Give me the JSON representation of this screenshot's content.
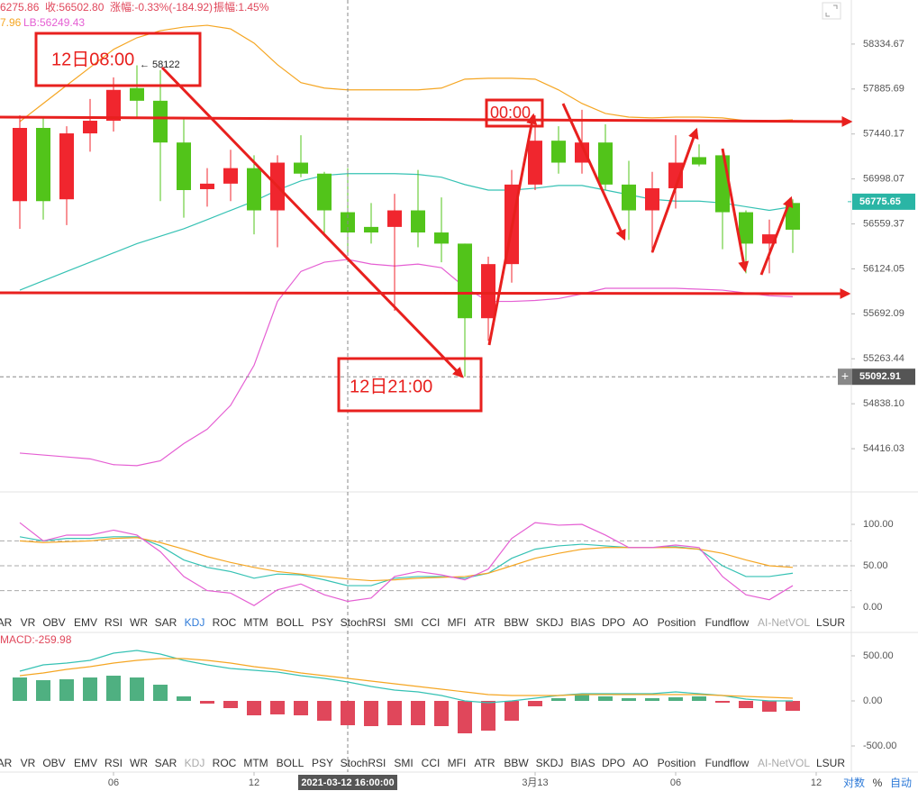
{
  "header": {
    "open_fragment": "6275.86",
    "close": "收:56502.80",
    "change": "涨幅:-0.33%(-184.92)",
    "amplitude": "振幅:1.45%",
    "ub_fragment": "7.96",
    "lb": "LB:56249.43"
  },
  "annotations": [
    {
      "text": "12日08:00",
      "note": "← 58122"
    },
    {
      "text": "00:00"
    },
    {
      "text": "12日21:00"
    }
  ],
  "indicator_tabs": [
    "AR",
    "VR",
    "OBV",
    "EMV",
    "RSI",
    "WR",
    "SAR",
    "KDJ",
    "ROC",
    "MTM",
    "BOLL",
    "PSY",
    "StochRSI",
    "SMI",
    "CCI",
    "MFI",
    "ATR",
    "BBW",
    "SKDJ",
    "BIAS",
    "DPO",
    "AO",
    "Position",
    "Fundflow",
    "AI-NetVOL",
    "LSUR"
  ],
  "scale_buttons": [
    "对数",
    "%",
    "自动"
  ],
  "chart_data": [
    {
      "type": "candlestick",
      "log": true,
      "up_color": "#f0262e",
      "down_color": "#52c41a",
      "open": [
        56781,
        57500,
        56799,
        57446,
        57571,
        57895,
        57769,
        57356,
        56898,
        56952,
        57104,
        56691,
        57158,
        57050,
        56673,
        56530,
        56530,
        56691,
        56476,
        56368,
        55650,
        56170,
        56943,
        57374,
        57158,
        57356,
        56943,
        56691,
        56907,
        57212,
        57230,
        56673,
        56368,
        56763
      ],
      "high": [
        57625,
        57607,
        57517,
        57787,
        58002,
        58122,
        58074,
        57607,
        57104,
        57284,
        57230,
        57230,
        57428,
        57068,
        57104,
        56763,
        56853,
        57086,
        56817,
        56368,
        56242,
        57086,
        57625,
        57517,
        57679,
        57535,
        57176,
        57068,
        57428,
        57338,
        57284,
        56691,
        56601,
        56799
      ],
      "low": [
        56512,
        56601,
        56548,
        57266,
        57464,
        57607,
        56781,
        56620,
        56727,
        56781,
        56458,
        56332,
        57015,
        56458,
        56260,
        56368,
        55721,
        56332,
        56188,
        55093,
        55434,
        55991,
        56889,
        57050,
        57050,
        56889,
        56404,
        56278,
        56709,
        57122,
        56314,
        56081,
        56081,
        56278
      ],
      "close": [
        57500,
        56781,
        57446,
        57571,
        57877,
        57769,
        57356,
        56889,
        56952,
        57104,
        56691,
        57158,
        57050,
        56691,
        56476,
        56476,
        56691,
        56476,
        56368,
        55650,
        56170,
        56943,
        57374,
        57158,
        57356,
        56943,
        56691,
        56907,
        57158,
        57140,
        56673,
        56368,
        56458,
        56503
      ],
      "series": [
        {
          "color": "#f5a623",
          "values": [
            57562,
            57742,
            57922,
            58101,
            58281,
            58398,
            58469,
            58505,
            58523,
            58487,
            58344,
            58128,
            57949,
            57895,
            57877,
            57877,
            57877,
            57877,
            57895,
            57984,
            57993,
            57993,
            57984,
            57877,
            57742,
            57643,
            57607,
            57599,
            57607,
            57607,
            57599,
            57571,
            57571,
            57580
          ]
        },
        {
          "color": "#36c2b4",
          "values": [
            55919,
            56009,
            56099,
            56188,
            56278,
            56368,
            56440,
            56512,
            56601,
            56691,
            56781,
            56889,
            56979,
            57033,
            57050,
            57050,
            57050,
            57042,
            57015,
            56943,
            56889,
            56889,
            56907,
            56934,
            56934,
            56889,
            56844,
            56799,
            56781,
            56781,
            56763,
            56727,
            56691,
            56727
          ]
        },
        {
          "color": "#e55fd3",
          "values": [
            54375,
            54357,
            54339,
            54321,
            54267,
            54258,
            54303,
            54464,
            54599,
            54823,
            55201,
            55811,
            56099,
            56188,
            56215,
            56170,
            56152,
            56170,
            56135,
            55946,
            55811,
            55811,
            55820,
            55838,
            55883,
            55937,
            55937,
            55937,
            55937,
            55928,
            55919,
            55892,
            55865,
            55856
          ]
        }
      ],
      "ylim": [
        54022,
        58778
      ],
      "yticks": [
        58334.67,
        57885.69,
        57440.17,
        56998.07,
        56559.37,
        56124.05,
        55692.09,
        55263.44,
        {
          "value": 54838.1,
          "label": "54838.10"
        },
        54416.03
      ],
      "xticks": [
        {
          "value": 4,
          "label": "06"
        },
        {
          "value": 10,
          "label": "12"
        },
        {
          "value": 22,
          "label": "3月13"
        },
        {
          "value": 28,
          "label": "06"
        },
        {
          "value": 34,
          "label": "12"
        }
      ],
      "last_price": 56775.65,
      "crosshair": {
        "x": 14,
        "label": "2021-03-12 16:00:00",
        "price": 55092.91
      }
    },
    {
      "type": "line",
      "series": [
        {
          "color": "#36c2b4",
          "values": [
            85,
            80,
            83,
            83,
            85,
            85,
            74,
            57,
            48,
            43,
            35,
            40,
            39,
            33,
            26,
            26,
            35,
            37,
            37,
            35,
            41,
            59,
            70,
            74,
            76,
            74,
            72,
            72,
            73,
            70,
            50,
            37,
            37,
            41
          ]
        },
        {
          "color": "#f5a623",
          "values": [
            80,
            78,
            79,
            80,
            83,
            84,
            78,
            70,
            61,
            54,
            48,
            43,
            40,
            37,
            34,
            32,
            33,
            35,
            36,
            37,
            41,
            50,
            59,
            65,
            70,
            72,
            72,
            72,
            72,
            70,
            65,
            57,
            50,
            48
          ]
        },
        {
          "color": "#e55fd3",
          "values": [
            102,
            80,
            87,
            87,
            93,
            87,
            67,
            37,
            20,
            17,
            2,
            21,
            28,
            15,
            7,
            11,
            37,
            43,
            39,
            33,
            46,
            83,
            102,
            99,
            100,
            87,
            72,
            72,
            75,
            72,
            37,
            15,
            9,
            26
          ]
        }
      ],
      "ylim": [
        -12,
        137
      ],
      "yticks": [
        {
          "value": 100,
          "label": "100.00"
        },
        {
          "value": 50,
          "label": "50.00"
        },
        {
          "value": 0,
          "label": "0.00"
        }
      ],
      "reference_lines": [
        80,
        50,
        20
      ]
    },
    {
      "type": "bar",
      "title": "MACD:-259.98",
      "positive_color": "#4fb081",
      "negative_color": "#e0475b",
      "values": [
        260,
        230,
        240,
        260,
        280,
        260,
        180,
        50,
        -30,
        -80,
        -160,
        -150,
        -160,
        -220,
        -270,
        -280,
        -270,
        -270,
        -280,
        -360,
        -330,
        -220,
        -60,
        30,
        70,
        50,
        30,
        30,
        40,
        50,
        -20,
        -80,
        -120,
        -110
      ],
      "series": [
        {
          "color": "#36c2b4",
          "values": [
            330,
            400,
            420,
            450,
            530,
            560,
            520,
            450,
            400,
            360,
            340,
            320,
            280,
            250,
            210,
            160,
            120,
            100,
            60,
            0,
            -20,
            0,
            30,
            60,
            80,
            80,
            80,
            80,
            100,
            80,
            60,
            20,
            0,
            0
          ]
        },
        {
          "color": "#f5a623",
          "values": [
            280,
            310,
            350,
            380,
            420,
            450,
            470,
            470,
            450,
            420,
            380,
            350,
            310,
            280,
            250,
            220,
            190,
            160,
            130,
            100,
            70,
            60,
            60,
            60,
            70,
            70,
            70,
            70,
            70,
            70,
            60,
            50,
            40,
            30
          ]
        }
      ],
      "ylim": [
        -640,
        730
      ],
      "yticks": [
        {
          "value": 500,
          "label": "500.00"
        },
        {
          "value": 0,
          "label": "0.00"
        },
        {
          "value": -500,
          "label": "-500.00"
        }
      ]
    }
  ]
}
